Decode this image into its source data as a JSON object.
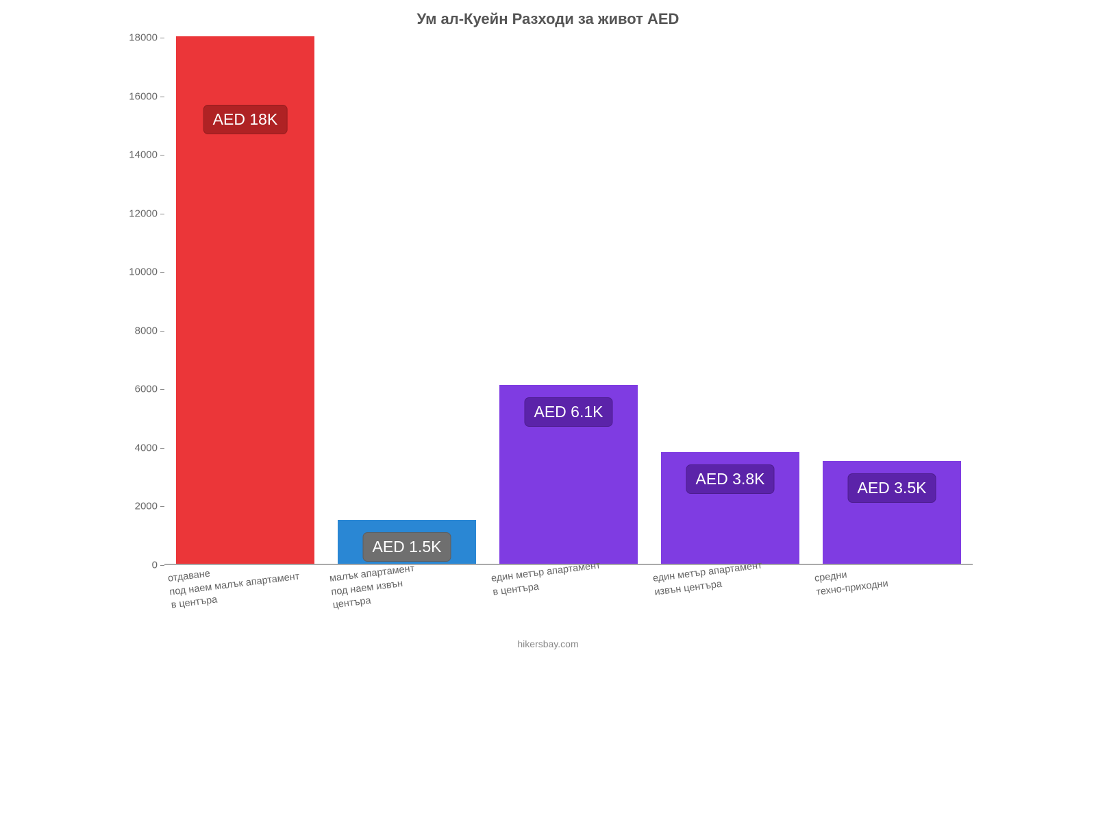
{
  "chart": {
    "type": "bar",
    "title": "Ум ал-Куейн Разходи за живот AED",
    "title_fontsize": 22,
    "title_color": "#555555",
    "background_color": "#ffffff",
    "axis_color": "#aaaaaa",
    "tick_label_color": "#666666",
    "tick_label_fontsize": 15,
    "ylim": [
      0,
      18000
    ],
    "ytick_step": 2000,
    "yticks": [
      0,
      2000,
      4000,
      6000,
      8000,
      10000,
      12000,
      14000,
      16000,
      18000
    ],
    "bar_width": 0.86,
    "categories": [
      "отдаване\nпод наем малък апартамент\nв центъра",
      "малък апартамент\nпод наем извън\nцентъра",
      "един метър апартамент\nв центъра",
      "един метър апартамент\nизвън центъра",
      "средни\nтехно-приходни"
    ],
    "values": [
      18000,
      1500,
      6100,
      3800,
      3500
    ],
    "value_labels": [
      "AED 18K",
      "AED 1.5K",
      "AED 6.1K",
      "AED 3.8K",
      "AED 3.5K"
    ],
    "bar_colors": [
      "#eb3639",
      "#2a87d4",
      "#7f3ce2",
      "#7f3ce2",
      "#7f3ce2"
    ],
    "badge_colors": [
      "#af2224",
      "#6f6f6f",
      "#5b23a9",
      "#5b23a9",
      "#5b23a9"
    ],
    "badge_text_color": "#ffffff",
    "badge_fontsize": 23,
    "xlabel_fontsize": 14.5,
    "xlabel_rotation_deg": -7,
    "attribution": "hikersbay.com",
    "attribution_color": "#888888",
    "attribution_fontsize": 14
  }
}
